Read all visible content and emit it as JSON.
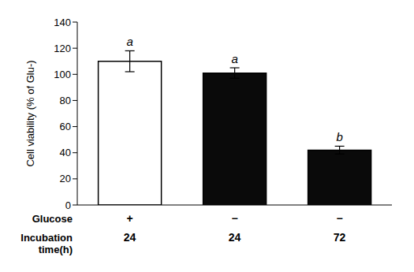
{
  "chart_data": {
    "type": "bar",
    "ylabel": "Cell viability (% of Glu-)",
    "category_rows": [
      {
        "name": "Glucose",
        "labels": [
          "+",
          "−",
          "−"
        ]
      },
      {
        "name": "Incubation\ntime(h)",
        "labels": [
          "24",
          "24",
          "72"
        ]
      }
    ],
    "values": [
      110,
      101,
      42
    ],
    "errors": [
      8,
      4,
      3
    ],
    "colors": [
      "#ffffff",
      "#0a0a0a",
      "#0a0a0a"
    ],
    "edge_color": "#000000",
    "annotations": [
      "a",
      "a",
      "b"
    ],
    "ylim": [
      0,
      140
    ],
    "yticks": [
      0,
      20,
      40,
      60,
      80,
      100,
      120,
      140
    ],
    "grid": false
  }
}
